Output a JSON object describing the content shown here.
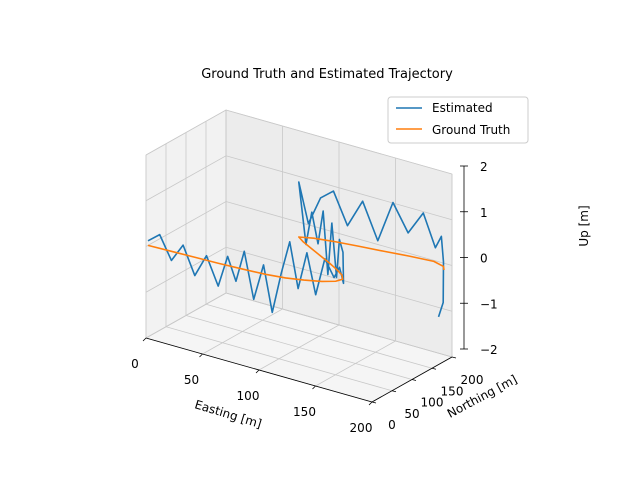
{
  "chart_data": {
    "type": "line3d",
    "title": "Ground Truth and Estimated Trajectory",
    "xlabel": "Easting [m]",
    "ylabel": "Northing [m]",
    "zlabel": "Up [m]",
    "xlim": [
      0,
      200
    ],
    "ylim": [
      0,
      200
    ],
    "zlim": [
      -2,
      2
    ],
    "xticks": [
      "0",
      "50",
      "100",
      "150",
      "200"
    ],
    "yticks": [
      "0",
      "50",
      "100",
      "150",
      "200"
    ],
    "zticks": [
      "−2",
      "−1",
      "0",
      "1",
      "2"
    ],
    "grid": true,
    "legend_position": "top-right",
    "colors": {
      "estimated": "#1f77b4",
      "ground_truth": "#ff7f0e"
    },
    "series": [
      {
        "name": "Estimated",
        "color": "#1f77b4",
        "points": [
          [
            0,
            5,
            0.1
          ],
          [
            10,
            6,
            0.3
          ],
          [
            20,
            7,
            -0.2
          ],
          [
            30,
            8,
            0.2
          ],
          [
            40,
            9,
            -0.4
          ],
          [
            50,
            10,
            0.1
          ],
          [
            60,
            11,
            -0.5
          ],
          [
            68,
            12,
            0.2
          ],
          [
            75,
            13,
            -0.3
          ],
          [
            82,
            14,
            0.4
          ],
          [
            90,
            15,
            -0.6
          ],
          [
            98,
            17,
            0.2
          ],
          [
            105,
            19,
            -0.8
          ],
          [
            112,
            22,
            0.1
          ],
          [
            118,
            26,
            0.8
          ],
          [
            124,
            30,
            -0.2
          ],
          [
            130,
            35,
            0.6
          ],
          [
            136,
            40,
            -0.3
          ],
          [
            142,
            46,
            0.5
          ],
          [
            148,
            52,
            0.1
          ],
          [
            150,
            60,
            0.3
          ],
          [
            150,
            70,
            -0.1
          ],
          [
            146,
            80,
            0.5
          ],
          [
            140,
            88,
            0.7
          ],
          [
            135,
            95,
            -0.2
          ],
          [
            128,
            103,
            0.9
          ],
          [
            122,
            110,
            -0.3
          ],
          [
            115,
            118,
            1.0
          ],
          [
            108,
            125,
            0.2
          ],
          [
            100,
            132,
            0.8
          ],
          [
            92,
            140,
            0.0
          ],
          [
            86,
            148,
            0.6
          ],
          [
            80,
            156,
            1.2
          ],
          [
            86,
            163,
            0.3
          ],
          [
            95,
            168,
            0.9
          ],
          [
            105,
            172,
            1.1
          ],
          [
            116,
            176,
            0.4
          ],
          [
            128,
            180,
            1.0
          ],
          [
            140,
            184,
            0.2
          ],
          [
            152,
            188,
            1.1
          ],
          [
            164,
            192,
            0.5
          ],
          [
            176,
            196,
            1.0
          ],
          [
            186,
            198,
            0.3
          ],
          [
            192,
            196,
            0.6
          ],
          [
            196,
            190,
            0.1
          ],
          [
            198,
            184,
            -0.3
          ],
          [
            200,
            178,
            -0.7
          ],
          [
            198,
            172,
            -1.0
          ]
        ]
      },
      {
        "name": "Ground Truth",
        "color": "#ff7f0e",
        "points": [
          [
            0,
            5,
            0.0
          ],
          [
            20,
            7,
            0.0
          ],
          [
            40,
            9,
            0.0
          ],
          [
            60,
            11,
            0.0
          ],
          [
            80,
            14,
            0.0
          ],
          [
            100,
            18,
            0.0
          ],
          [
            115,
            24,
            0.0
          ],
          [
            128,
            33,
            0.0
          ],
          [
            140,
            44,
            0.0
          ],
          [
            148,
            56,
            0.0
          ],
          [
            150,
            68,
            0.0
          ],
          [
            145,
            80,
            0.0
          ],
          [
            136,
            92,
            0.0
          ],
          [
            125,
            105,
            0.0
          ],
          [
            112,
            119,
            0.0
          ],
          [
            99,
            133,
            0.0
          ],
          [
            88,
            145,
            0.0
          ],
          [
            80,
            156,
            0.0
          ],
          [
            90,
            165,
            0.0
          ],
          [
            105,
            172,
            0.0
          ],
          [
            125,
            179,
            0.0
          ],
          [
            145,
            185,
            0.0
          ],
          [
            165,
            192,
            0.0
          ],
          [
            185,
            197,
            0.0
          ],
          [
            196,
            190,
            0.0
          ],
          [
            200,
            180,
            0.0
          ]
        ]
      }
    ]
  }
}
